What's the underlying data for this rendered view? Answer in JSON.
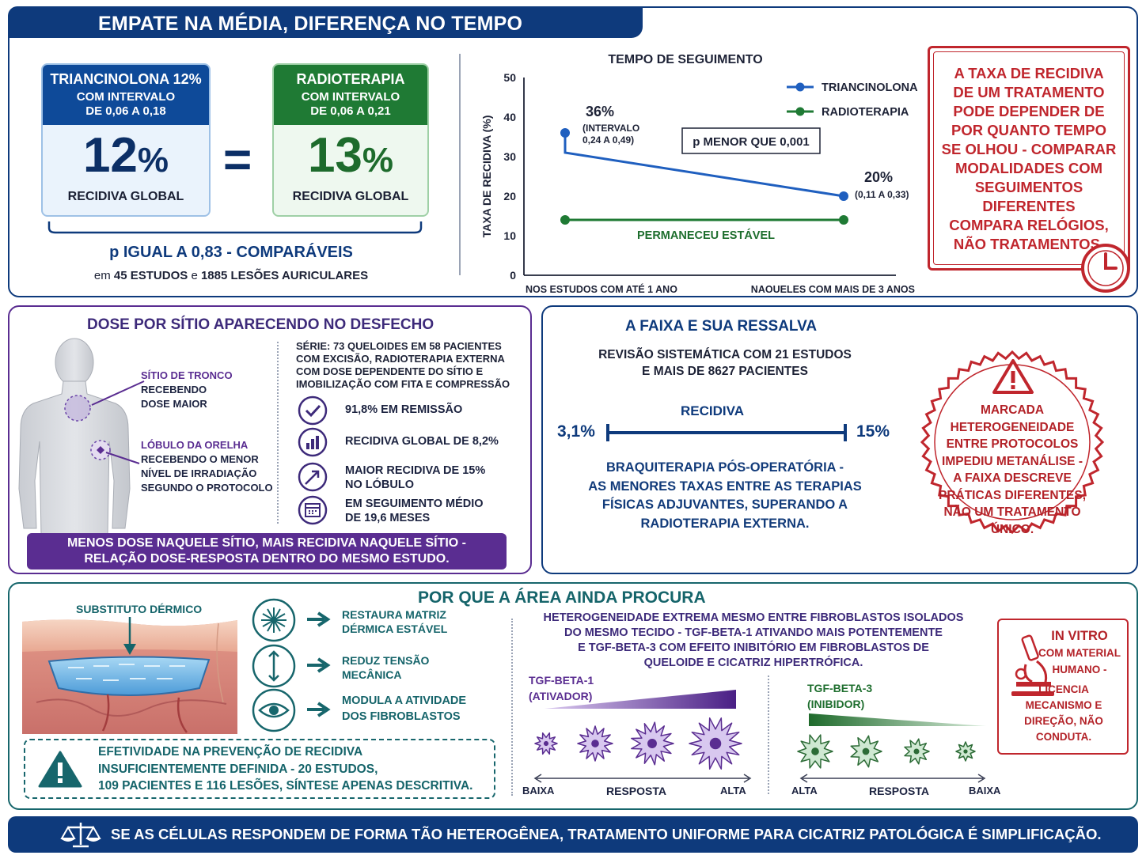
{
  "colors": {
    "navy": "#0e3a7c",
    "green": "#1f7a34",
    "purple": "#5a2d91",
    "teal": "#17666c",
    "red": "#c0262d",
    "blue_line": "#1f5fbf"
  },
  "top": {
    "title": "EMPATE NA MÉDIA, DIFERENÇA NO TEMPO",
    "tri_card": {
      "head1": "TRIANCINOLONA 12%",
      "head2": "COM INTERVALO",
      "head3": "DE 0,06 A 0,18",
      "big": "12",
      "pct": "%",
      "label": "RECIDIVA GLOBAL"
    },
    "equals": "=",
    "rad_card": {
      "head1": "RADIOTERAPIA",
      "head2": "COM INTERVALO",
      "head3": "DE 0,06 A 0,21",
      "big": "13",
      "pct": "%",
      "label": "RECIDIVA GLOBAL"
    },
    "p_text": "p IGUAL A 0,83 - COMPARÁVEIS",
    "studies_pre": "em",
    "studies_bold1": "45 ESTUDOS",
    "studies_mid": "e",
    "studies_bold2": "1885 LESÕES AURICULARES",
    "warning": [
      "A TAXA DE RECIDIVA",
      "DE UM TRATAMENTO",
      "PODE DEPENDER DE",
      "POR QUANTO TEMPO",
      "SE OLHOU - COMPARAR",
      "MODALIDADES COM",
      "SEGUIMENTOS",
      "DIFERENTES",
      "COMPARA RELÓGIOS,",
      "NÃO TRATAMENTOS."
    ],
    "clock_icon": "clock-icon"
  },
  "chart_data": {
    "type": "line",
    "title": "TEMPO DE SEGUIMENTO",
    "ylabel": "TAXA DE RECIDIVA (%)",
    "categories": [
      "NOS ESTUDOS COM ATÉ 1 ANO",
      "NAQUELES COM MAIS DE 3 ANOS"
    ],
    "ylim": [
      0,
      50
    ],
    "yticks": [
      "0",
      "10",
      "20",
      "30",
      "40",
      "50"
    ],
    "series": [
      {
        "name": "TRIANCINOLONA",
        "values": [
          36,
          20
        ]
      },
      {
        "name": "RADIOTERAPIA",
        "values": [
          14,
          14
        ]
      }
    ],
    "annotations": {
      "tri_start_value": "36%",
      "tri_start_range1": "(INTERVALO",
      "tri_start_range2": "0,24 A 0,49)",
      "tri_end_value": "20%",
      "tri_end_range": "(0,11 A 0,33)",
      "pvalue": "p MENOR QUE 0,001",
      "stable": "PERMANECEU ESTÁVEL"
    }
  },
  "dose": {
    "title": "DOSE POR SÍTIO APARECENDO NO DESFECHO",
    "trunk_label": [
      "SÍTIO DE TRONCO",
      "RECEBENDO",
      "DOSE MAIOR"
    ],
    "ear_label": [
      "LÓBULO DA ORELHA",
      "RECEBENDO O MENOR",
      "NÍVEL DE IRRADIAÇÃO",
      "SEGUNDO O PROTOCOLO"
    ],
    "series_text": [
      "SÉRIE: 73 QUELOIDES EM 58 PACIENTES",
      "COM EXCISÃO, RADIOTERAPIA EXTERNA",
      "COM DOSE DEPENDENTE DO SÍTIO E",
      "IMOBILIZAÇÃO COM FITA E COMPRESSÃO"
    ],
    "stats": [
      {
        "icon": "check-icon",
        "lines": [
          "91,8% EM REMISSÃO"
        ]
      },
      {
        "icon": "bar-chart-icon",
        "lines": [
          "RECIDIVA GLOBAL DE 8,2%"
        ]
      },
      {
        "icon": "trend-up-icon",
        "lines": [
          "MAIOR RECIDIVA DE 15%",
          "NO LÓBULO"
        ]
      },
      {
        "icon": "calendar-icon",
        "lines": [
          "EM SEGUIMENTO MÉDIO",
          "DE 19,6 MESES"
        ]
      }
    ],
    "banner": [
      "MENOS DOSE NAQUELE SÍTIO, MAIS RECIDIVA NAQUELE SÍTIO -",
      "RELAÇÃO DOSE-RESPOSTA DENTRO DO MESMO ESTUDO."
    ]
  },
  "range": {
    "title": "A FAIXA E SUA RESSALVA",
    "review": [
      "REVISÃO SISTEMÁTICA COM 21 ESTUDOS",
      "E MAIS DE 8627 PACIENTES"
    ],
    "label": "RECIDIVA",
    "low": "3,1%",
    "high": "15%",
    "brachy": [
      "BRAQUITERAPIA PÓS-OPERATÓRIA -",
      "AS MENORES TAXAS ENTRE AS TERAPIAS",
      "FÍSICAS ADJUVANTES, SUPERANDO A",
      "RADIOTERAPIA EXTERNA."
    ],
    "stamp": [
      "MARCADA",
      "HETEROGENEIDADE",
      "ENTRE PROTOCOLOS",
      "IMPEDIU METANÁLISE -",
      "A FAIXA DESCREVE",
      "PRÁTICAS DIFERENTES,",
      "NÃO UM TRATAMENTO",
      "ÚNICO."
    ]
  },
  "why": {
    "title": "POR QUE A ÁREA AINDA PROCURA",
    "dermal": "SUBSTITUTO DÉRMICO",
    "actions": [
      {
        "icon": "matrix-icon",
        "lines": [
          "RESTAURA MATRIZ",
          "DÉRMICA ESTÁVEL"
        ]
      },
      {
        "icon": "tension-icon",
        "lines": [
          "REDUZ TENSÃO",
          "MECÂNICA"
        ]
      },
      {
        "icon": "eye-icon",
        "lines": [
          "MODULA A ATIVIDADE",
          "DOS FIBROBLASTOS"
        ]
      }
    ],
    "efficacy": [
      "EFETIVIDADE NA PREVENÇÃO DE RECIDIVA",
      "INSUFICIENTEMENTE DEFINIDA - 20 ESTUDOS,",
      "109 PACIENTES E 116 LESÕES, SÍNTESE APENAS DESCRITIVA."
    ],
    "hetero": [
      "HETEROGENEIDADE EXTREMA MESMO ENTRE FIBROBLASTOS ISOLADOS",
      "DO MESMO TECIDO - TGF-BETA-1 ATIVANDO MAIS POTENTEMENTE",
      "E TGF-BETA-3 COM EFEITO INIBITÓRIO EM FIBROBLASTOS DE",
      "QUELOIDE E CICATRIZ HIPERTRÓFICA."
    ],
    "tgf1": {
      "name": "TGF-BETA-1",
      "role": "(ATIVADOR)",
      "low": "BAIXA",
      "mid": "RESPOSTA",
      "high": "ALTA"
    },
    "tgf3": {
      "name": "TGF-BETA-3",
      "role": "(INIBIDOR)",
      "low": "ALTA",
      "mid": "RESPOSTA",
      "high": "BAIXA"
    },
    "invitro": [
      "IN VITRO",
      "COM MATERIAL",
      "HUMANO -",
      "LICENCIA",
      "MECANISMO E",
      "DIREÇÃO, NÃO",
      "CONDUTA."
    ]
  },
  "footer": {
    "text": "SE AS CÉLULAS RESPONDEM DE FORMA TÃO HETEROGÊNEA, TRATAMENTO UNIFORME PARA CICATRIZ PATOLÓGICA É SIMPLIFICAÇÃO."
  }
}
